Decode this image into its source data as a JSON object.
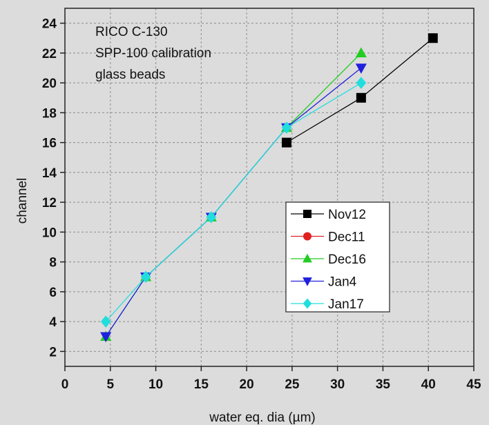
{
  "chart_data": {
    "type": "line",
    "title": "",
    "annotation": [
      "RICO C-130",
      "SPP-100 calibration",
      "glass beads"
    ],
    "xlabel": "water eq. dia (µm)",
    "ylabel": "channel",
    "xlim": [
      0,
      45
    ],
    "ylim": [
      1,
      25
    ],
    "xticks": [
      0,
      5,
      10,
      15,
      20,
      25,
      30,
      35,
      40,
      45
    ],
    "yticks": [
      2,
      4,
      6,
      8,
      10,
      12,
      14,
      16,
      18,
      20,
      22,
      24
    ],
    "grid": true,
    "legend_position": "right",
    "series": [
      {
        "name": "Nov12",
        "color": "#000000",
        "marker": "square",
        "x": [
          24.4,
          32.6,
          40.5
        ],
        "y": [
          16,
          19,
          23
        ]
      },
      {
        "name": "Dec11",
        "color": "#e02020",
        "marker": "circle",
        "x": [],
        "y": []
      },
      {
        "name": "Dec16",
        "color": "#22cc22",
        "marker": "triangle-up",
        "x": [
          4.5,
          8.9,
          16.1,
          24.4,
          32.6
        ],
        "y": [
          3,
          7,
          11,
          17,
          22
        ]
      },
      {
        "name": "Jan4",
        "color": "#2020dd",
        "marker": "triangle-down",
        "x": [
          4.5,
          8.9,
          16.1,
          24.4,
          32.6
        ],
        "y": [
          3,
          7,
          11,
          17,
          21
        ]
      },
      {
        "name": "Jan17",
        "color": "#22dddd",
        "marker": "diamond",
        "x": [
          4.5,
          8.9,
          16.1,
          24.4,
          32.6
        ],
        "y": [
          4,
          7,
          11,
          17,
          20
        ]
      }
    ]
  }
}
